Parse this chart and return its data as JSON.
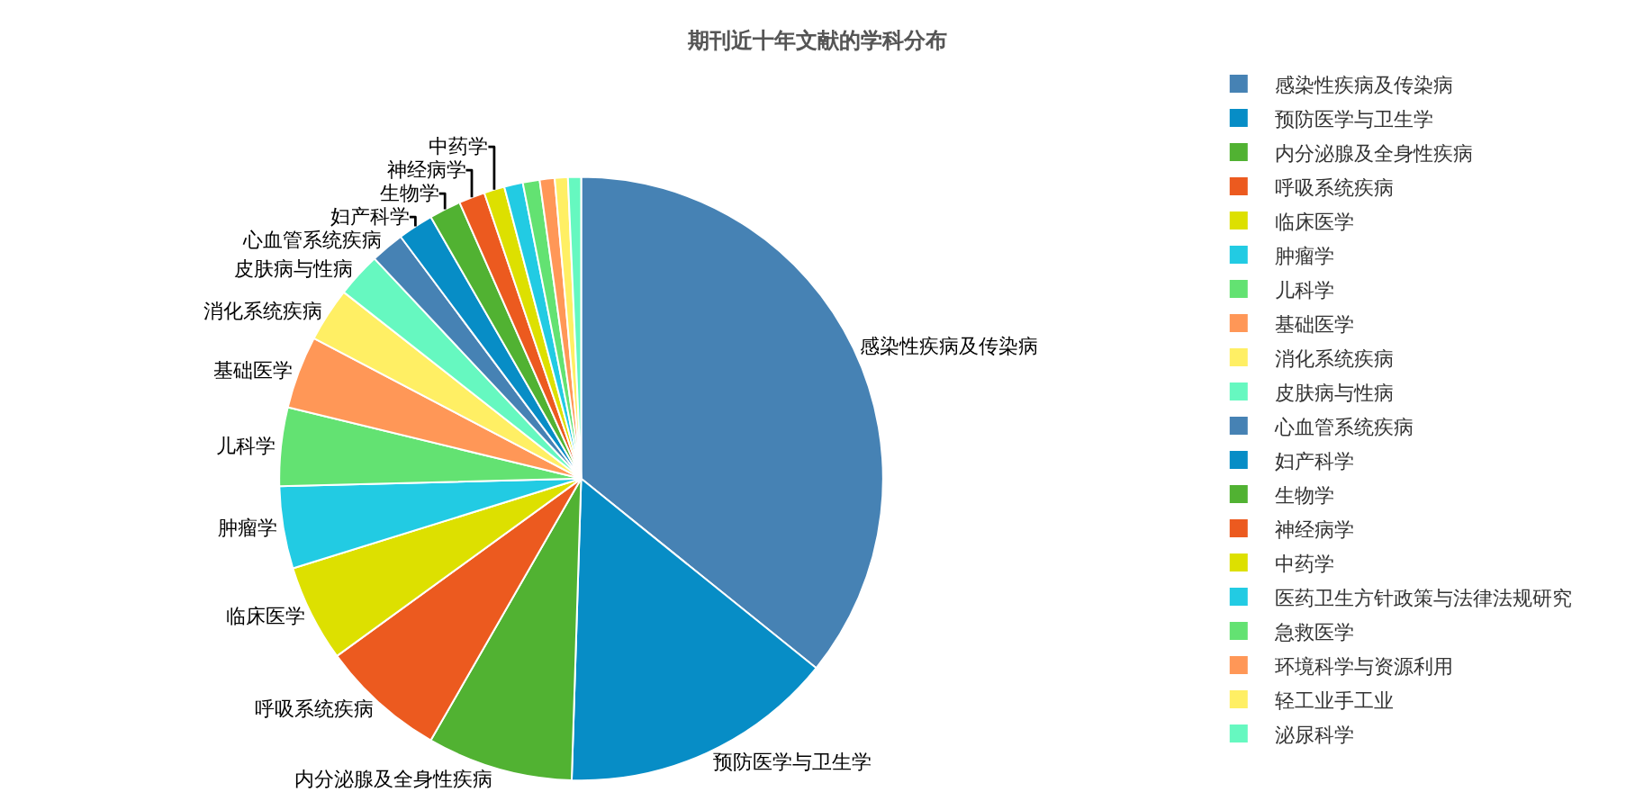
{
  "chart_data": {
    "type": "pie",
    "title": "期刊近十年文献的学科分布",
    "legend": "right",
    "categories": [
      "感染性疾病及传染病",
      "预防医学与卫生学",
      "内分泌腺及全身性疾病",
      "呼吸系统疾病",
      "临床医学",
      "肿瘤学",
      "儿科学",
      "基础医学",
      "消化系统疾病",
      "皮肤病与性病",
      "心血管系统疾病",
      "妇产科学",
      "生物学",
      "神经病学",
      "中药学",
      "医药卫生方针政策与法律法规研究",
      "急救医学",
      "环境科学与资源利用",
      "轻工业手工业",
      "泌尿科学"
    ],
    "values": [
      35.8,
      14.7,
      7.8,
      6.7,
      5.2,
      4.4,
      4.2,
      3.9,
      2.9,
      2.4,
      1.8,
      1.9,
      1.7,
      1.4,
      1.1,
      1.0,
      0.9,
      0.8,
      0.7,
      0.7
    ],
    "colors": [
      "#4682b4",
      "#078dc6",
      "#51b232",
      "#ec5a1f",
      "#dde000",
      "#22cbe3",
      "#63e272",
      "#ff9757",
      "#ffef64",
      "#66f8c0",
      "#4682b4",
      "#078dc6",
      "#51b232",
      "#ec5a1f",
      "#dde000",
      "#22cbe3",
      "#63e272",
      "#ff9757",
      "#ffef64",
      "#66f8c0"
    ]
  }
}
